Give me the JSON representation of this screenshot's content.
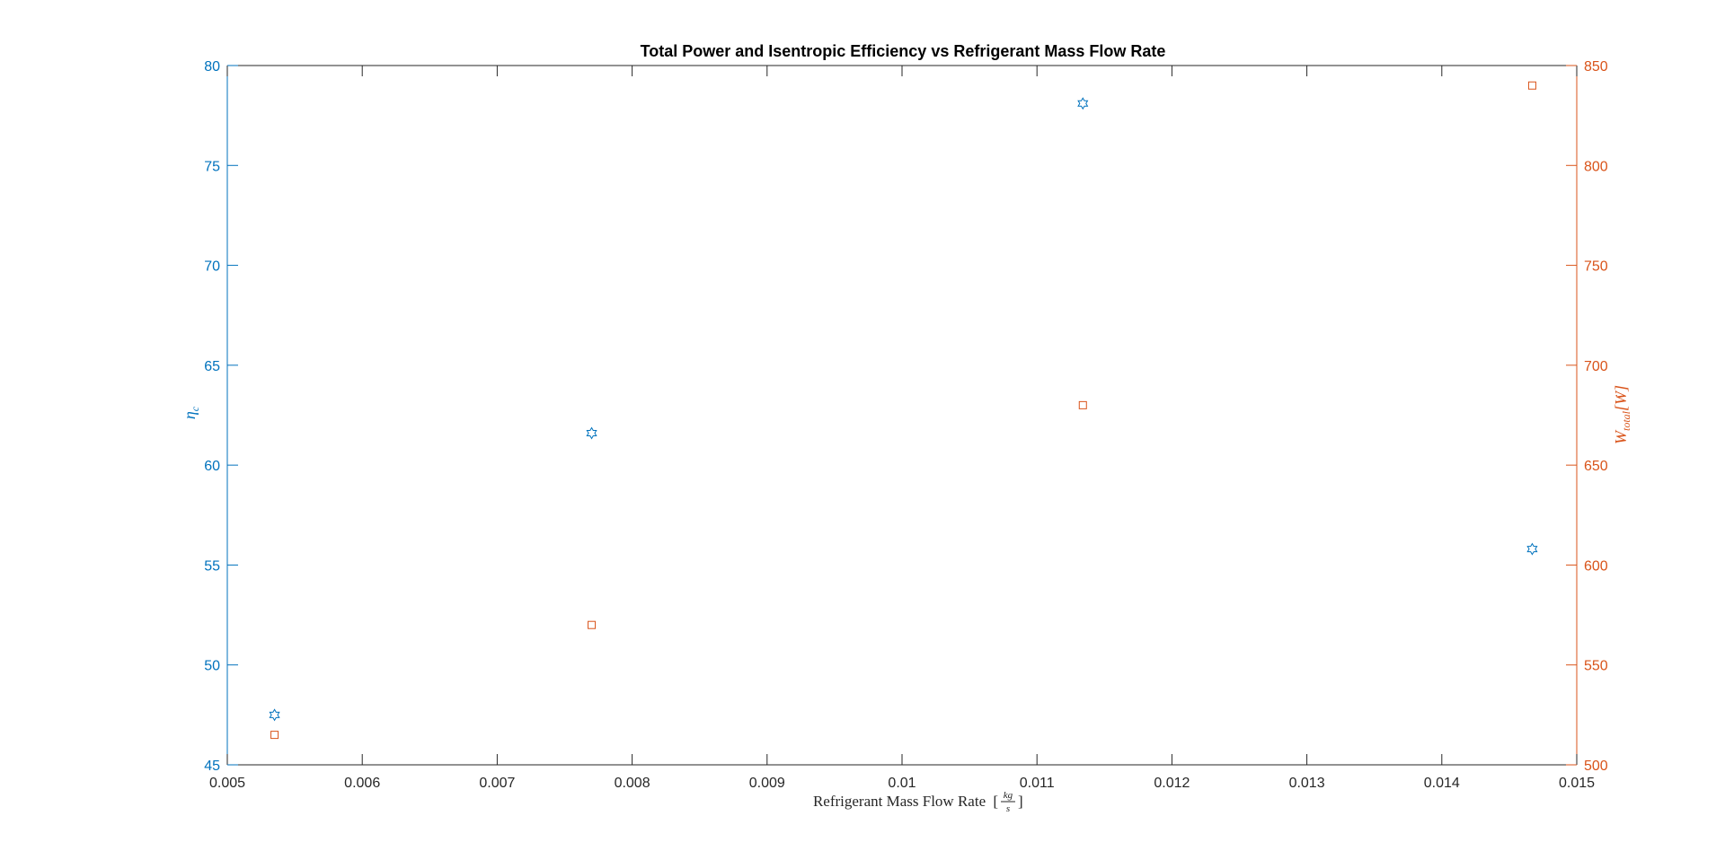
{
  "chart_data": {
    "type": "scatter",
    "title": "Total Power and Isentropic Efficiency vs Refrigerant Mass Flow Rate",
    "xlabel": "Refrigerant Mass Flow Rate",
    "xlabel_unit_num": "kg",
    "xlabel_unit_den": "s",
    "ylabel_left": "η",
    "ylabel_left_sub": "c",
    "ylabel_right": "W",
    "ylabel_right_sub": "total",
    "ylabel_right_unit": "[W]",
    "xlim": [
      0.005,
      0.015
    ],
    "ylim_left": [
      45,
      80
    ],
    "ylim_right": [
      500,
      850
    ],
    "xticks": [
      "0.005",
      "0.006",
      "0.007",
      "0.008",
      "0.009",
      "0.01",
      "0.011",
      "0.012",
      "0.013",
      "0.014",
      "0.015"
    ],
    "yticks_left": [
      "45",
      "50",
      "55",
      "60",
      "65",
      "70",
      "75",
      "80"
    ],
    "yticks_right": [
      "500",
      "550",
      "600",
      "650",
      "700",
      "750",
      "800",
      "850"
    ],
    "grid": false,
    "legend": "none",
    "colors": {
      "left": "#0072BD",
      "right": "#D95319",
      "axis": "#262626"
    },
    "series": [
      {
        "axis": "left",
        "marker": "hexagram",
        "x": [
          0.00535,
          0.0077,
          0.01134,
          0.01467
        ],
        "y": [
          47.5,
          61.6,
          78.1,
          55.8
        ]
      },
      {
        "axis": "right",
        "marker": "square",
        "x": [
          0.00535,
          0.0077,
          0.01134,
          0.01467
        ],
        "y": [
          515,
          570,
          680,
          840
        ]
      }
    ]
  }
}
